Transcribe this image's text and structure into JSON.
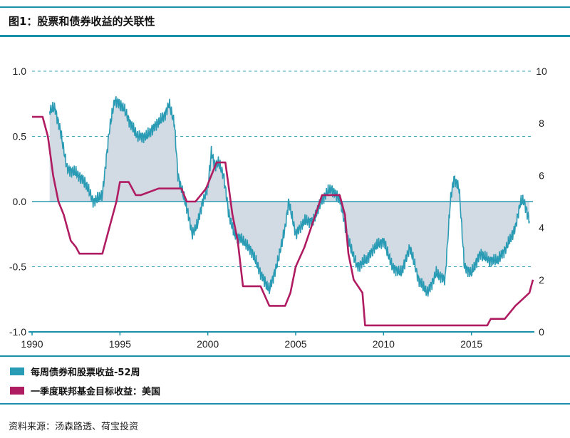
{
  "title": "图1：股票和债券收益的关联性",
  "source": "资料来源：汤森路透、荷宝投资",
  "colors": {
    "accent": "#1a8fa8",
    "series1": "#2a9bb4",
    "series2": "#b01c62",
    "fill": "#d2dae3",
    "grid": "#3aa6bd"
  },
  "chart_data": {
    "type": "line",
    "title": "股票和债券收益的关联性",
    "x_ticks": [
      "1990",
      "1995",
      "2000",
      "2005",
      "2010",
      "2015"
    ],
    "x_tick_values": [
      1990,
      1995,
      2000,
      2005,
      2010,
      2015
    ],
    "xlim": [
      1990,
      2018.5
    ],
    "left_axis": {
      "ylim": [
        -1.0,
        1.0
      ],
      "ticks": [
        "1.0",
        "0.5",
        "0.0",
        "-0.5",
        "-1.0"
      ],
      "tick_values": [
        1.0,
        0.5,
        0.0,
        -0.5,
        -1.0
      ]
    },
    "right_axis": {
      "ylim": [
        0,
        10
      ],
      "ticks": [
        "10",
        "8",
        "6",
        "4",
        "2",
        "0"
      ],
      "tick_values": [
        10,
        8,
        6,
        4,
        2,
        0
      ]
    },
    "grid": "dashed horizontal at left-axis ticks",
    "series": [
      {
        "name": "每周债券和股票收益-52周",
        "axis": "left",
        "fill_to_zero": true,
        "points": [
          [
            1991.0,
            0.7
          ],
          [
            1991.3,
            0.72
          ],
          [
            1991.6,
            0.55
          ],
          [
            1992.0,
            0.25
          ],
          [
            1992.5,
            0.22
          ],
          [
            1993.0,
            0.15
          ],
          [
            1993.5,
            0.0
          ],
          [
            1994.0,
            0.05
          ],
          [
            1994.4,
            0.55
          ],
          [
            1994.7,
            0.78
          ],
          [
            1995.2,
            0.72
          ],
          [
            1995.6,
            0.6
          ],
          [
            1996.0,
            0.5
          ],
          [
            1996.5,
            0.5
          ],
          [
            1997.0,
            0.58
          ],
          [
            1997.5,
            0.65
          ],
          [
            1997.8,
            0.75
          ],
          [
            1998.1,
            0.6
          ],
          [
            1998.3,
            0.2
          ],
          [
            1998.6,
            0.05
          ],
          [
            1998.9,
            -0.1
          ],
          [
            1999.1,
            -0.25
          ],
          [
            1999.4,
            -0.18
          ],
          [
            1999.7,
            0.0
          ],
          [
            2000.0,
            0.1
          ],
          [
            2000.2,
            0.38
          ],
          [
            2000.4,
            0.28
          ],
          [
            2000.6,
            0.3
          ],
          [
            2000.9,
            0.2
          ],
          [
            2001.2,
            -0.1
          ],
          [
            2001.5,
            -0.25
          ],
          [
            2002.0,
            -0.3
          ],
          [
            2002.5,
            -0.38
          ],
          [
            2003.0,
            -0.55
          ],
          [
            2003.5,
            -0.68
          ],
          [
            2004.0,
            -0.45
          ],
          [
            2004.4,
            -0.2
          ],
          [
            2004.6,
            0.0
          ],
          [
            2005.0,
            -0.25
          ],
          [
            2005.5,
            -0.15
          ],
          [
            2006.0,
            -0.15
          ],
          [
            2006.5,
            0.02
          ],
          [
            2007.0,
            0.1
          ],
          [
            2007.5,
            0.02
          ],
          [
            2008.0,
            -0.3
          ],
          [
            2008.5,
            -0.5
          ],
          [
            2009.0,
            -0.45
          ],
          [
            2009.5,
            -0.35
          ],
          [
            2010.0,
            -0.3
          ],
          [
            2010.5,
            -0.5
          ],
          [
            2011.0,
            -0.55
          ],
          [
            2011.5,
            -0.35
          ],
          [
            2012.0,
            -0.6
          ],
          [
            2012.5,
            -0.7
          ],
          [
            2013.0,
            -0.55
          ],
          [
            2013.5,
            -0.6
          ],
          [
            2013.8,
            0.0
          ],
          [
            2014.0,
            0.18
          ],
          [
            2014.3,
            0.1
          ],
          [
            2014.6,
            -0.5
          ],
          [
            2015.0,
            -0.55
          ],
          [
            2015.5,
            -0.4
          ],
          [
            2016.0,
            -0.45
          ],
          [
            2016.5,
            -0.45
          ],
          [
            2017.0,
            -0.35
          ],
          [
            2017.5,
            -0.2
          ],
          [
            2017.8,
            0.0
          ],
          [
            2018.0,
            0.0
          ],
          [
            2018.3,
            -0.15
          ]
        ]
      },
      {
        "name": "一季度联邦基金目标收益：美国",
        "axis": "right",
        "points": [
          [
            1990.0,
            8.25
          ],
          [
            1990.6,
            8.25
          ],
          [
            1990.9,
            7.5
          ],
          [
            1991.2,
            6.0
          ],
          [
            1991.5,
            5.0
          ],
          [
            1991.8,
            4.5
          ],
          [
            1992.2,
            3.5
          ],
          [
            1992.5,
            3.25
          ],
          [
            1992.7,
            3.0
          ],
          [
            1994.0,
            3.0
          ],
          [
            1994.4,
            4.0
          ],
          [
            1994.8,
            5.0
          ],
          [
            1995.0,
            5.75
          ],
          [
            1995.5,
            5.75
          ],
          [
            1995.9,
            5.25
          ],
          [
            1996.2,
            5.25
          ],
          [
            1997.2,
            5.5
          ],
          [
            1998.5,
            5.5
          ],
          [
            1998.8,
            5.0
          ],
          [
            1999.3,
            5.0
          ],
          [
            1999.6,
            5.25
          ],
          [
            1999.9,
            5.5
          ],
          [
            2000.2,
            6.0
          ],
          [
            2000.5,
            6.5
          ],
          [
            2001.0,
            6.5
          ],
          [
            2001.2,
            5.5
          ],
          [
            2001.4,
            4.5
          ],
          [
            2001.7,
            3.5
          ],
          [
            2002.0,
            1.75
          ],
          [
            2003.0,
            1.75
          ],
          [
            2003.5,
            1.0
          ],
          [
            2004.4,
            1.0
          ],
          [
            2004.7,
            1.5
          ],
          [
            2005.0,
            2.5
          ],
          [
            2005.5,
            3.25
          ],
          [
            2006.0,
            4.25
          ],
          [
            2006.5,
            5.25
          ],
          [
            2007.5,
            5.25
          ],
          [
            2007.8,
            4.5
          ],
          [
            2008.0,
            3.0
          ],
          [
            2008.3,
            2.0
          ],
          [
            2008.8,
            1.5
          ],
          [
            2008.95,
            0.25
          ],
          [
            2015.9,
            0.25
          ],
          [
            2016.1,
            0.5
          ],
          [
            2016.9,
            0.5
          ],
          [
            2017.2,
            0.75
          ],
          [
            2017.5,
            1.0
          ],
          [
            2017.9,
            1.25
          ],
          [
            2018.3,
            1.5
          ],
          [
            2018.4,
            1.75
          ],
          [
            2018.5,
            2.0
          ]
        ]
      }
    ]
  },
  "legend": [
    {
      "label": "每周债券和股票收益-52周",
      "color": "#2a9bb4"
    },
    {
      "label": "一季度联邦基金目标收益：美国",
      "color": "#b01c62"
    }
  ]
}
